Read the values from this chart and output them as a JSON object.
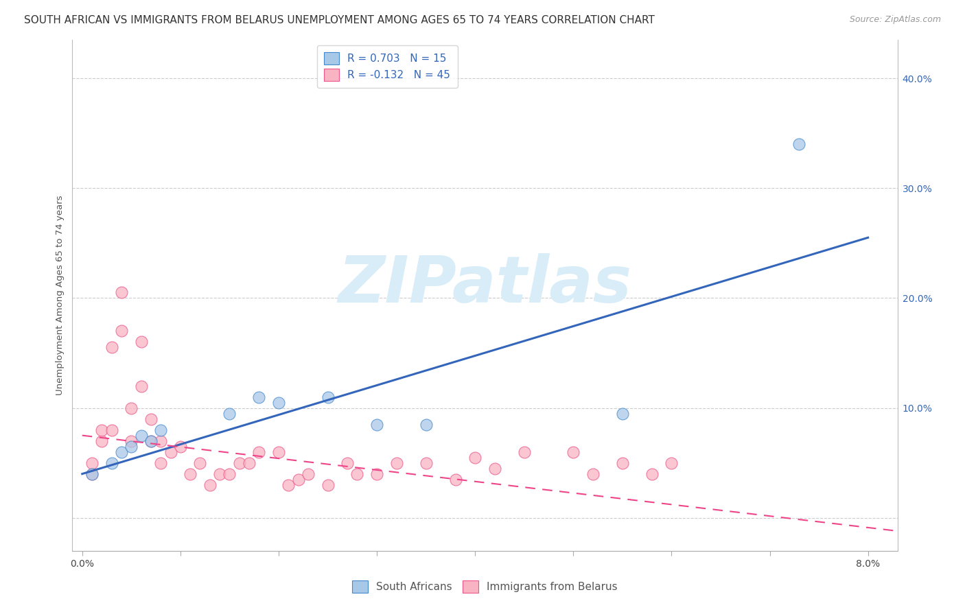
{
  "title": "SOUTH AFRICAN VS IMMIGRANTS FROM BELARUS UNEMPLOYMENT AMONG AGES 65 TO 74 YEARS CORRELATION CHART",
  "source": "Source: ZipAtlas.com",
  "ylabel": "Unemployment Among Ages 65 to 74 years",
  "xlim": [
    -0.001,
    0.083
  ],
  "ylim": [
    -0.03,
    0.435
  ],
  "xticks": [
    0.0,
    0.01,
    0.02,
    0.03,
    0.04,
    0.05,
    0.06,
    0.07,
    0.08
  ],
  "xticklabels": [
    "0.0%",
    "",
    "",
    "",
    "",
    "",
    "",
    "",
    "8.0%"
  ],
  "yticks_right": [
    0.0,
    0.1,
    0.2,
    0.3,
    0.4
  ],
  "yticklabels_right": [
    "",
    "10.0%",
    "20.0%",
    "30.0%",
    "40.0%"
  ],
  "legend1_label": "R = 0.703   N = 15",
  "legend2_label": "R = -0.132   N = 45",
  "legend_bottom_labels": [
    "South Africans",
    "Immigrants from Belarus"
  ],
  "blue_fill": "#A8C8E8",
  "pink_fill": "#F9B4C4",
  "blue_edge": "#4488CC",
  "pink_edge": "#EE5588",
  "blue_line": "#3366BB",
  "pink_line": "#EE4488",
  "watermark_color": "#D8EDF8",
  "blue_scatter_x": [
    0.001,
    0.003,
    0.004,
    0.005,
    0.006,
    0.007,
    0.008,
    0.015,
    0.018,
    0.02,
    0.025,
    0.03,
    0.035,
    0.055,
    0.073
  ],
  "blue_scatter_y": [
    0.04,
    0.05,
    0.06,
    0.065,
    0.075,
    0.07,
    0.08,
    0.095,
    0.11,
    0.105,
    0.11,
    0.085,
    0.085,
    0.095,
    0.34
  ],
  "blue_trend_x0": 0.0,
  "blue_trend_x1": 0.08,
  "blue_trend_y0": 0.04,
  "blue_trend_y1": 0.255,
  "pink_scatter_x": [
    0.001,
    0.001,
    0.002,
    0.002,
    0.003,
    0.003,
    0.004,
    0.004,
    0.005,
    0.005,
    0.006,
    0.006,
    0.007,
    0.007,
    0.008,
    0.008,
    0.009,
    0.01,
    0.011,
    0.012,
    0.013,
    0.014,
    0.015,
    0.016,
    0.017,
    0.018,
    0.02,
    0.021,
    0.022,
    0.023,
    0.025,
    0.027,
    0.028,
    0.03,
    0.032,
    0.035,
    0.038,
    0.04,
    0.042,
    0.045,
    0.05,
    0.052,
    0.055,
    0.058,
    0.06
  ],
  "pink_scatter_y": [
    0.04,
    0.05,
    0.07,
    0.08,
    0.08,
    0.155,
    0.17,
    0.205,
    0.07,
    0.1,
    0.12,
    0.16,
    0.07,
    0.09,
    0.07,
    0.05,
    0.06,
    0.065,
    0.04,
    0.05,
    0.03,
    0.04,
    0.04,
    0.05,
    0.05,
    0.06,
    0.06,
    0.03,
    0.035,
    0.04,
    0.03,
    0.05,
    0.04,
    0.04,
    0.05,
    0.05,
    0.035,
    0.055,
    0.045,
    0.06,
    0.06,
    0.04,
    0.05,
    0.04,
    0.05
  ],
  "pink_trend_x0": 0.0,
  "pink_trend_x1": 0.083,
  "pink_trend_y0": 0.075,
  "pink_trend_y1": -0.012,
  "title_fontsize": 11,
  "tick_fontsize": 10,
  "legend_fontsize": 11,
  "source_fontsize": 9
}
